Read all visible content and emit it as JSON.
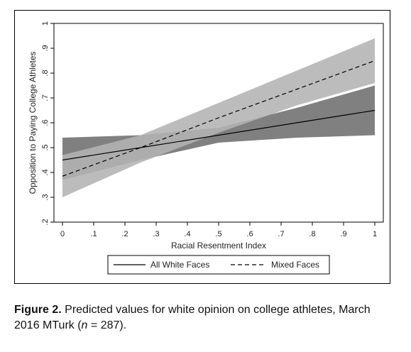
{
  "chart_data": {
    "type": "line",
    "xlabel": "Racial Resentment Index",
    "ylabel": "Opposition to Paying College Athletes",
    "xlim": [
      0,
      1
    ],
    "ylim": [
      0.2,
      1
    ],
    "x_ticks": [
      "0",
      ".1",
      ".2",
      ".3",
      ".4",
      ".5",
      ".6",
      ".7",
      ".8",
      ".9",
      "1"
    ],
    "y_ticks": [
      ".2",
      ".3",
      ".4",
      ".5",
      ".6",
      ".7",
      ".8",
      ".9",
      "1"
    ],
    "grid": false,
    "legend_position": "bottom",
    "series": [
      {
        "name": "All White Faces",
        "line_style": "solid",
        "band_color": "#6e6e6e",
        "x": [
          0,
          0.25,
          0.5,
          0.75,
          1
        ],
        "y": [
          0.45,
          0.5,
          0.55,
          0.6,
          0.65
        ],
        "lower": [
          0.37,
          0.45,
          0.52,
          0.54,
          0.55
        ],
        "upper": [
          0.54,
          0.55,
          0.58,
          0.66,
          0.75
        ]
      },
      {
        "name": "Mixed Faces",
        "line_style": "dashed",
        "band_color": "#b3b3b3",
        "x": [
          0,
          0.25,
          0.5,
          0.75,
          1
        ],
        "y": [
          0.385,
          0.5,
          0.62,
          0.735,
          0.85
        ],
        "lower": [
          0.3,
          0.44,
          0.56,
          0.67,
          0.76
        ],
        "upper": [
          0.47,
          0.55,
          0.68,
          0.81,
          0.94
        ]
      }
    ]
  },
  "caption": {
    "label": "Figure 2.",
    "text_before": "Predicted values for white opinion on college athletes, March 2016 MTurk (",
    "n_symbol": "n",
    "text_after": " = 287)."
  }
}
